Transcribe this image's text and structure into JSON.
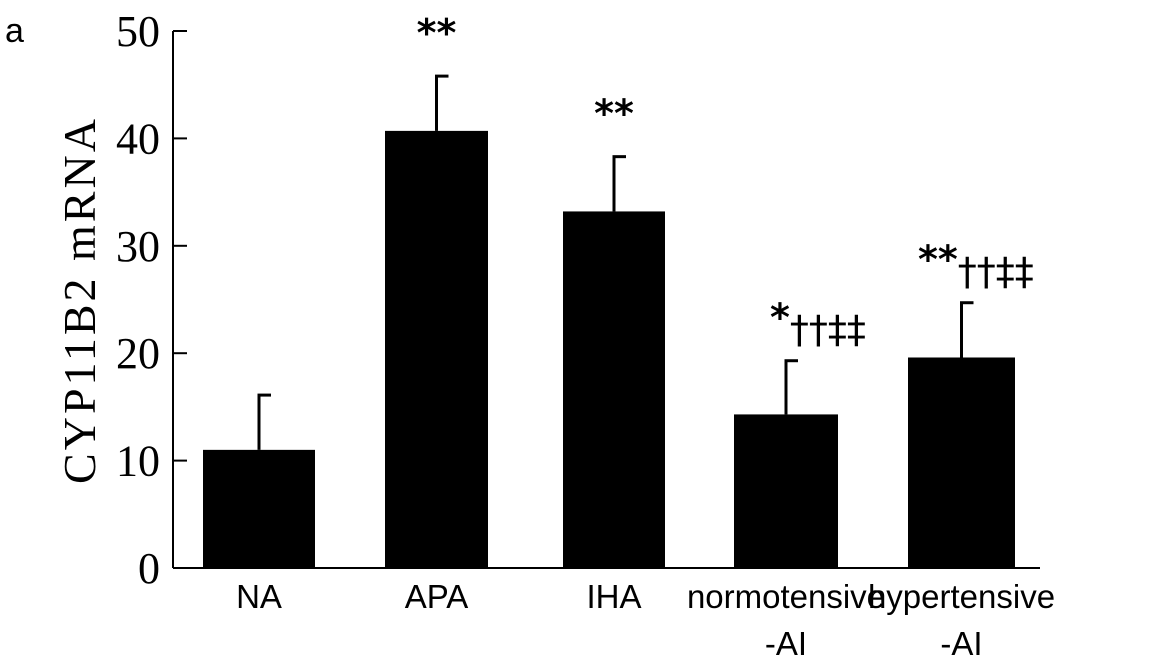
{
  "panel_label": "a",
  "chart_data": {
    "type": "bar",
    "title": "",
    "xlabel": "",
    "ylabel": "CYP11B2 mRNA",
    "ylim": [
      0,
      50
    ],
    "yticks": [
      "0",
      "10",
      "20",
      "30",
      "40",
      "50"
    ],
    "categories": [
      {
        "line1": "NA",
        "line2": ""
      },
      {
        "line1": "APA",
        "line2": ""
      },
      {
        "line1": "IHA",
        "line2": ""
      },
      {
        "line1": "normotensive",
        "line2": "-AI"
      },
      {
        "line1": "hypertensive",
        "line2": "-AI"
      }
    ],
    "values": [
      11.0,
      40.7,
      33.2,
      14.3,
      19.6
    ],
    "error_upper": [
      16.1,
      45.8,
      38.3,
      19.3,
      24.7
    ],
    "annotations": [
      "",
      "**",
      "**",
      "*††‡‡",
      "**††‡‡"
    ],
    "bar_color": "#000000",
    "grid": false
  }
}
